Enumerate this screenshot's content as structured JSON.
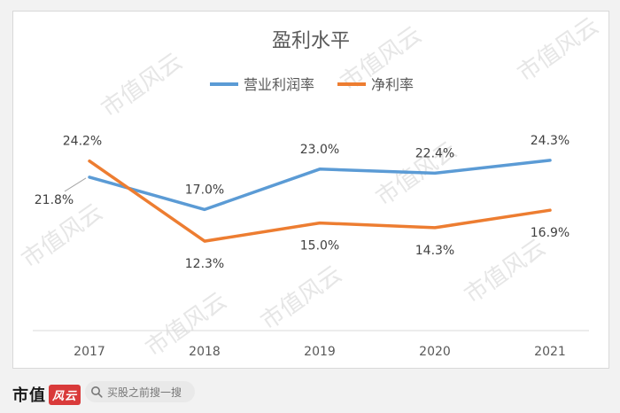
{
  "chart_data": {
    "type": "line",
    "title": "盈利水平",
    "categories": [
      "2017",
      "2018",
      "2019",
      "2020",
      "2021"
    ],
    "series": [
      {
        "name": "营业利润率",
        "color": "#5b9bd5",
        "values": [
          21.8,
          17.0,
          23.0,
          22.4,
          24.3
        ],
        "labels": [
          "21.8%",
          "17.0%",
          "23.0%",
          "22.4%",
          "24.3%"
        ]
      },
      {
        "name": "净利率",
        "color": "#ed7d31",
        "values": [
          24.2,
          12.3,
          15.0,
          14.3,
          16.9
        ],
        "labels": [
          "24.2%",
          "12.3%",
          "15.0%",
          "14.3%",
          "16.9%"
        ]
      }
    ],
    "xlabel": "",
    "ylabel": "",
    "ylim": [
      0,
      30
    ],
    "grid": false,
    "legend": "top-center"
  },
  "watermark": {
    "text": "市值风云"
  },
  "footer": {
    "logo_text": "市值",
    "logo_mark": "风云",
    "search_text": "买股之前搜一搜"
  }
}
